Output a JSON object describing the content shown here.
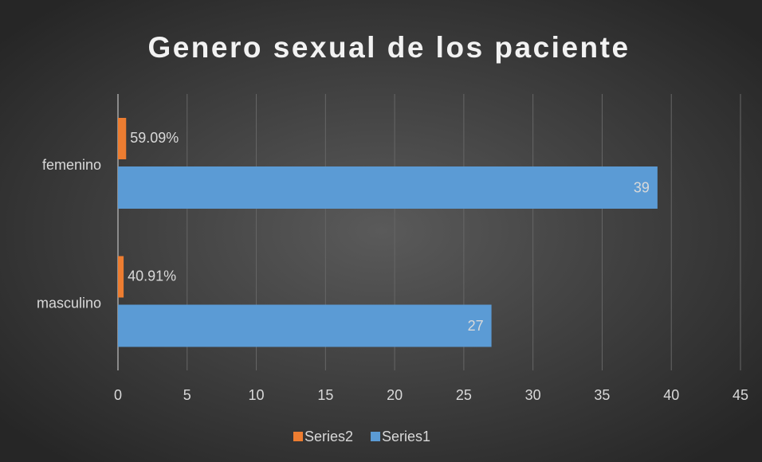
{
  "chart_data": {
    "type": "hbar",
    "title": "Genero sexual de los paciente",
    "categories": [
      "femenino",
      "masculino"
    ],
    "series": [
      {
        "name": "Series2",
        "color": "#ed7d31",
        "values": [
          0.5909,
          0.4091
        ],
        "value_labels": [
          "59.09%",
          "40.91%"
        ]
      },
      {
        "name": "Series1",
        "color": "#5b9bd5",
        "values": [
          39,
          27
        ]
      }
    ],
    "xlim": [
      0,
      45
    ],
    "xticks": [
      0,
      5,
      10,
      15,
      20,
      25,
      30,
      35,
      40,
      45
    ],
    "grid": true,
    "legend": "bottom"
  }
}
